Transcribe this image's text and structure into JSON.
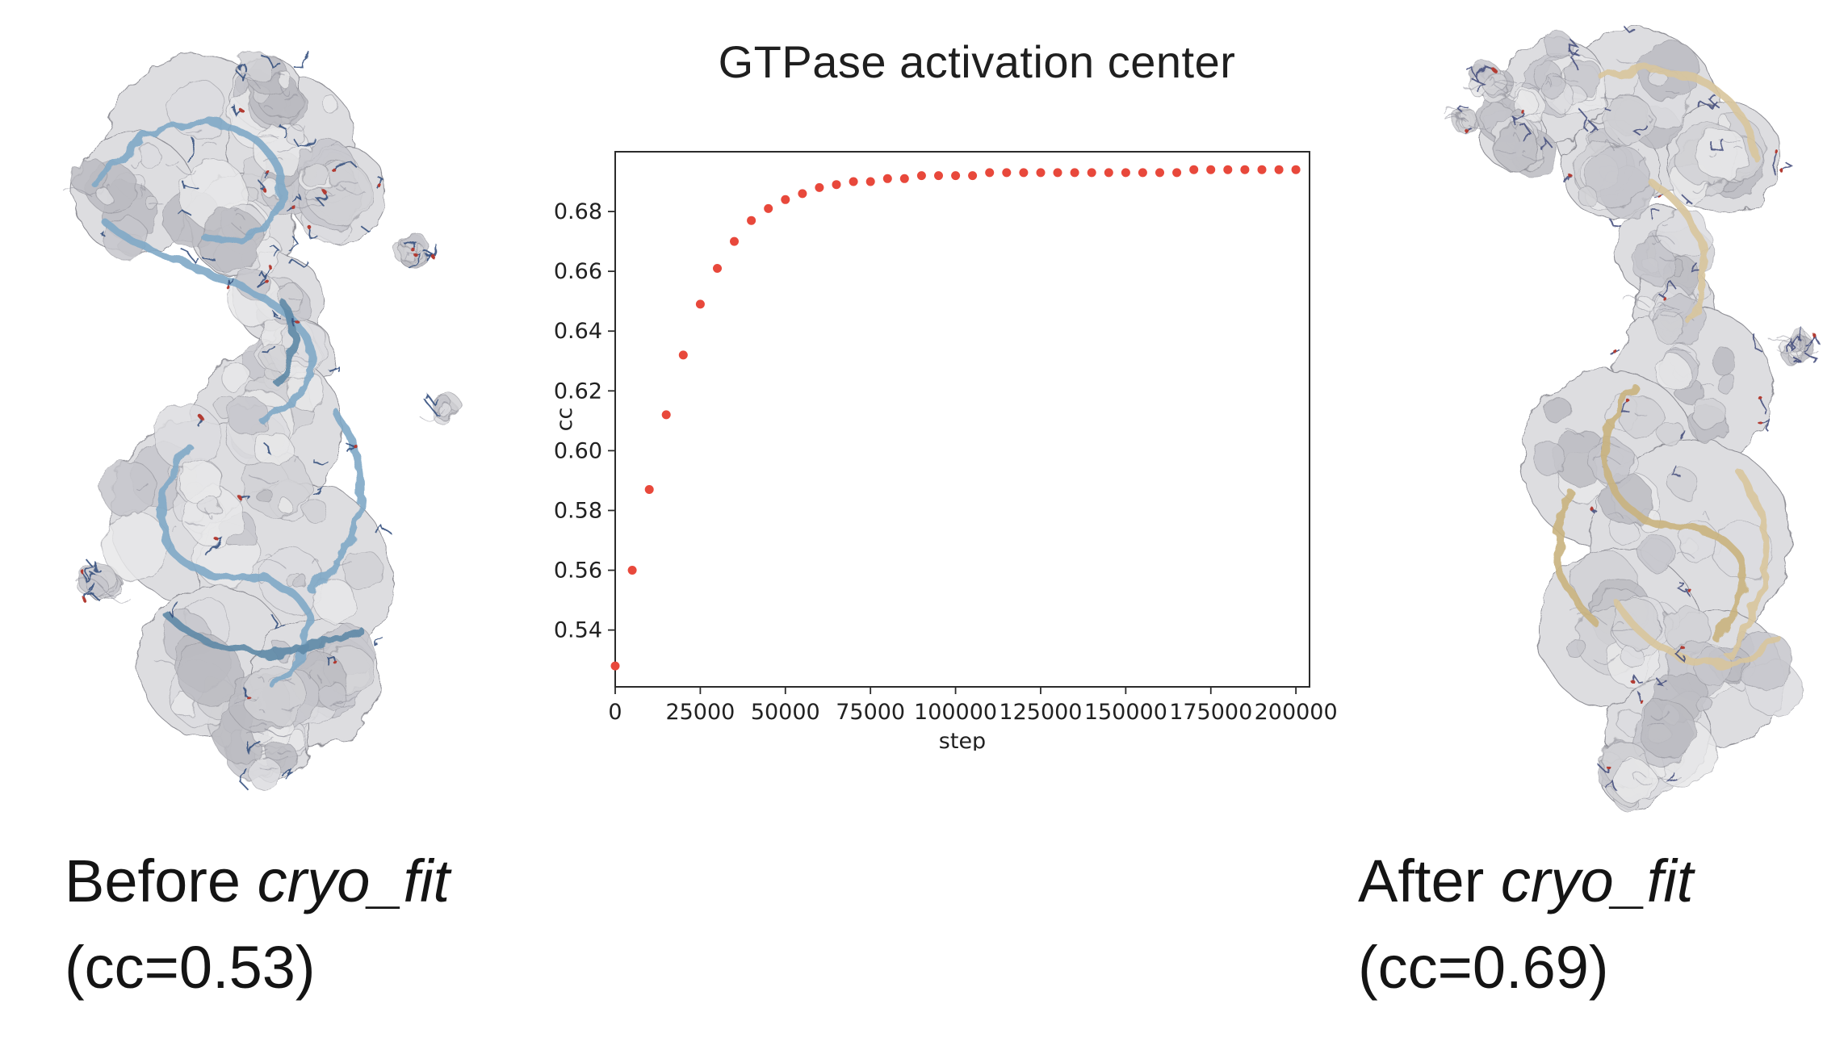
{
  "figure": {
    "title": "GTPase activation center",
    "captions": {
      "before": {
        "prefix": "Before ",
        "program": "cryo_fit",
        "cc_line": "(cc=0.53)"
      },
      "after": {
        "prefix": "After ",
        "program": "cryo_fit",
        "cc_line": "(cc=0.69)"
      }
    }
  },
  "colors": {
    "marker": "#e8483b",
    "model_before_ribbon": "#7fa9c6",
    "model_after_ribbon": "#d8c59c",
    "density_map_gray": "#d6d6d9"
  },
  "chart_data": {
    "type": "scatter",
    "title": "GTPase activation center",
    "xlabel": "step",
    "ylabel": "cc",
    "xlim": [
      0,
      204000
    ],
    "ylim": [
      0.521,
      0.7
    ],
    "xticks": [
      0,
      25000,
      50000,
      75000,
      100000,
      125000,
      150000,
      175000,
      200000
    ],
    "yticks": [
      0.54,
      0.56,
      0.58,
      0.6,
      0.62,
      0.64,
      0.66,
      0.68
    ],
    "grid": false,
    "legend": "none",
    "marker_color": "#e8483b",
    "x": [
      0,
      5000,
      10000,
      15000,
      20000,
      25000,
      30000,
      35000,
      40000,
      45000,
      50000,
      55000,
      60000,
      65000,
      70000,
      75000,
      80000,
      85000,
      90000,
      95000,
      100000,
      105000,
      110000,
      115000,
      120000,
      125000,
      130000,
      135000,
      140000,
      145000,
      150000,
      155000,
      160000,
      165000,
      170000,
      175000,
      180000,
      185000,
      190000,
      195000,
      200000
    ],
    "y": [
      0.528,
      0.56,
      0.587,
      0.612,
      0.632,
      0.649,
      0.661,
      0.67,
      0.677,
      0.681,
      0.684,
      0.686,
      0.688,
      0.689,
      0.69,
      0.69,
      0.691,
      0.691,
      0.692,
      0.692,
      0.692,
      0.692,
      0.693,
      0.693,
      0.693,
      0.693,
      0.693,
      0.693,
      0.693,
      0.693,
      0.693,
      0.693,
      0.693,
      0.693,
      0.694,
      0.694,
      0.694,
      0.694,
      0.694,
      0.694,
      0.694
    ]
  }
}
